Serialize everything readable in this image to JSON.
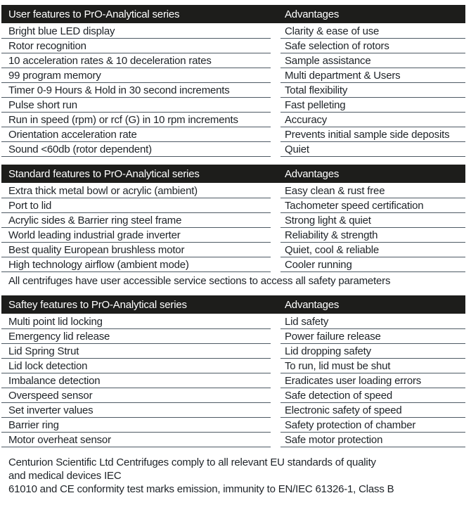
{
  "colors": {
    "header_bar_bg": "#1d1d1b",
    "header_bar_text": "#ffffff",
    "body_text": "#1e2328",
    "divider_line": "#4e5a64",
    "page_bg": "#ffffff"
  },
  "sections": [
    {
      "header": {
        "title": "User features to PrO-Analytical series",
        "advantages_label": "Advantages"
      },
      "rows": [
        {
          "feature": "Bright blue LED display",
          "advantage": "Clarity & ease of use"
        },
        {
          "feature": "Rotor recognition",
          "advantage": "Safe selection of rotors"
        },
        {
          "feature": "10 acceleration rates & 10 deceleration rates",
          "advantage": "Sample assistance"
        },
        {
          "feature": "99 program memory",
          "advantage": "Multi department & Users"
        },
        {
          "feature": "Timer 0-9 Hours & Hold in 30 second increments",
          "advantage": "Total flexibility"
        },
        {
          "feature": "Pulse short run",
          "advantage": "Fast pelleting"
        },
        {
          "feature": "Run in speed (rpm) or rcf (G) in 10 rpm increments",
          "advantage": "Accuracy"
        },
        {
          "feature": "Orientation acceleration rate",
          "advantage": "Prevents initial sample side deposits"
        },
        {
          "feature": "Sound <60db (rotor dependent)",
          "advantage": "Quiet"
        }
      ],
      "note": null
    },
    {
      "header": {
        "title": "Standard features to PrO-Analytical series",
        "advantages_label": "Advantages"
      },
      "rows": [
        {
          "feature": "Extra thick metal bowl or acrylic (ambient)",
          "advantage": "Easy clean & rust free"
        },
        {
          "feature": "Port to lid",
          "advantage": "Tachometer speed certification"
        },
        {
          "feature": "Acrylic sides & Barrier ring steel frame",
          "advantage": "Strong light & quiet"
        },
        {
          "feature": "World leading industrial grade inverter",
          "advantage": "Reliability & strength"
        },
        {
          "feature": "Best quality European brushless motor",
          "advantage": "Quiet, cool & reliable"
        },
        {
          "feature": "High technology airflow (ambient mode)",
          "advantage": "Cooler running"
        }
      ],
      "note": "All centrifuges have user accessible service sections to access all safety parameters"
    },
    {
      "header": {
        "title": "Saftey features to PrO-Analytical series",
        "advantages_label": "Advantages"
      },
      "rows": [
        {
          "feature": "Multi point lid locking",
          "advantage": "Lid safety"
        },
        {
          "feature": "Emergency lid release",
          "advantage": "Power failure release"
        },
        {
          "feature": "Lid Spring Strut",
          "advantage": "Lid dropping safety"
        },
        {
          "feature": "Lid lock detection",
          "advantage": "To run, lid must be shut"
        },
        {
          "feature": "Imbalance detection",
          "advantage": "Eradicates user loading errors"
        },
        {
          "feature": "Overspeed sensor",
          "advantage": "Safe detection of speed"
        },
        {
          "feature": "Set inverter values",
          "advantage": "Electronic safety of speed"
        },
        {
          "feature": "Barrier ring",
          "advantage": "Safety protection of chamber"
        },
        {
          "feature": "Motor overheat sensor",
          "advantage": "Safe motor protection"
        }
      ],
      "note": null
    }
  ],
  "footer": {
    "lines": [
      "Centurion Scientific Ltd Centrifuges comply to all relevant EU standards of quality",
      "and medical devices IEC",
      "61010 and CE conformity test marks emission, immunity to EN/IEC 61326-1, Class B"
    ]
  }
}
